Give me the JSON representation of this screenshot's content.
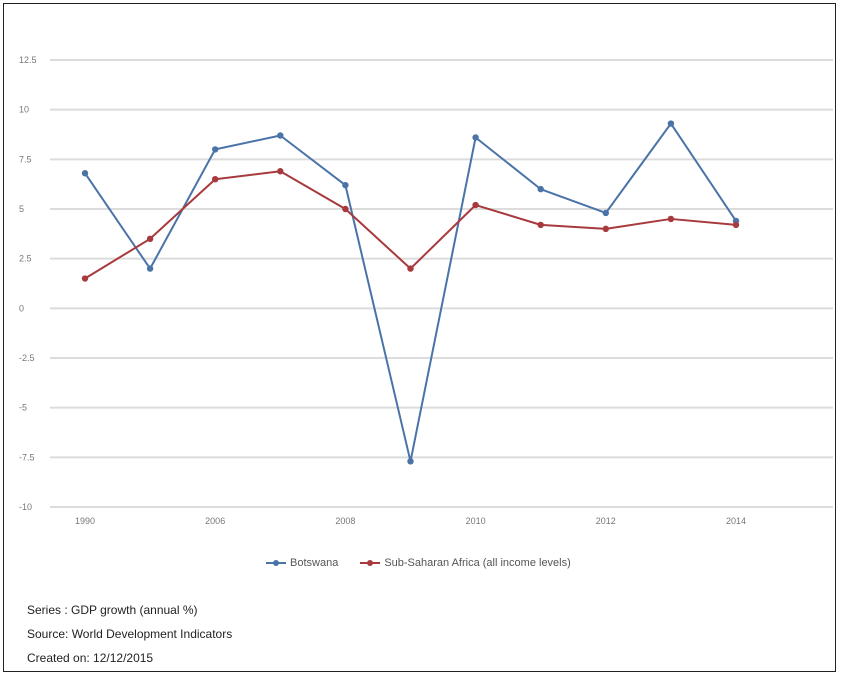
{
  "chart_data": {
    "type": "line",
    "x": [
      "1990",
      "",
      "2006",
      "",
      "2008",
      "",
      "2010",
      "",
      "2012",
      "",
      "2014"
    ],
    "x_tick_labels": [
      "1990",
      "2006",
      "2008",
      "2010",
      "2012",
      "2014"
    ],
    "ylim": [
      -10,
      12.5
    ],
    "y_ticks": [
      "12.5",
      "10",
      "7.5",
      "5",
      "2.5",
      "0",
      "-2.5",
      "-5",
      "-7.5",
      "-10"
    ],
    "grid": true,
    "legend_position": "bottom",
    "series": [
      {
        "name": "Botswana",
        "color": "#4a73a8",
        "values": [
          6.8,
          2.0,
          8.0,
          8.7,
          6.2,
          -7.7,
          8.6,
          6.0,
          4.8,
          9.3,
          4.4
        ]
      },
      {
        "name": "Sub-Saharan Africa (all income levels)",
        "color": "#a83a3e",
        "values": [
          1.5,
          3.5,
          6.5,
          6.9,
          5.0,
          2.0,
          5.2,
          4.2,
          4.0,
          4.5,
          4.2
        ]
      }
    ]
  },
  "notes": {
    "series": "Series : GDP growth (annual %)",
    "source": "Source: World Development Indicators",
    "created": "Created on: 12/12/2015"
  }
}
